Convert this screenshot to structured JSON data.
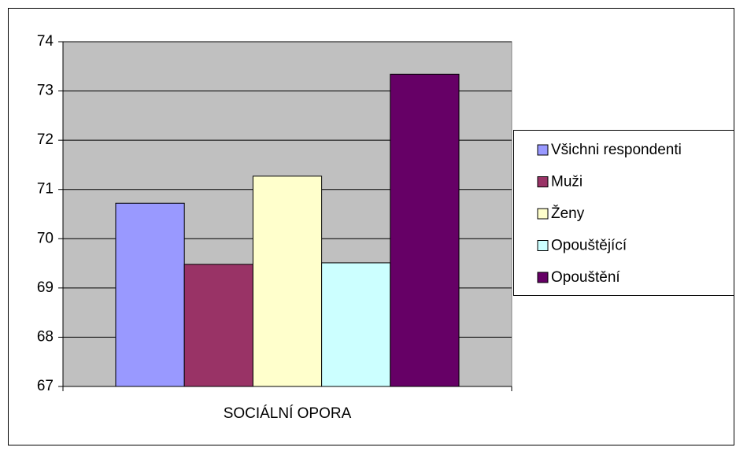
{
  "chart_data": {
    "type": "bar",
    "categories": [
      "SOCIÁLNÍ OPORA"
    ],
    "series": [
      {
        "name": "Všichni respondenti",
        "color": "#9999ff",
        "values": [
          70.72
        ]
      },
      {
        "name": "Muži",
        "color": "#993366",
        "values": [
          69.48
        ]
      },
      {
        "name": "Ženy",
        "color": "#ffffcc",
        "values": [
          71.27
        ]
      },
      {
        "name": "Opouštějící",
        "color": "#ccffff",
        "values": [
          69.51
        ]
      },
      {
        "name": "Opouštění",
        "color": "#660066",
        "values": [
          73.34
        ]
      }
    ],
    "ylim": [
      67,
      74
    ],
    "yticks": [
      67,
      68,
      69,
      70,
      71,
      72,
      73,
      74
    ],
    "grid": true,
    "legend": "right",
    "plot_background": "#c0c0c0"
  }
}
